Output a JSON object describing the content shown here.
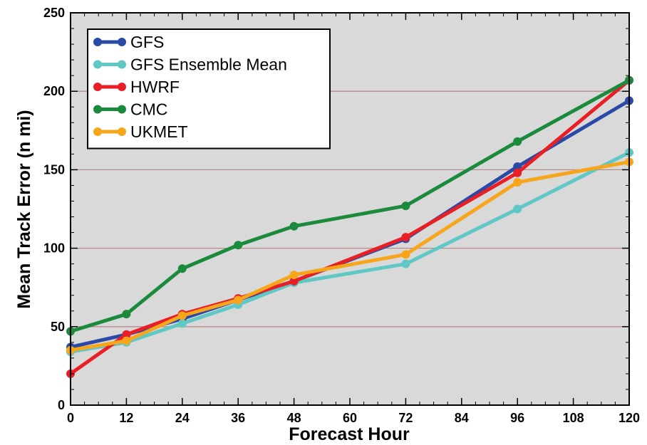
{
  "chart_data": {
    "type": "line",
    "title": "",
    "xlabel": "Forecast Hour",
    "ylabel": "Mean Track Error (n mi)",
    "x_ticks": [
      0,
      12,
      24,
      36,
      48,
      60,
      72,
      84,
      96,
      108,
      120
    ],
    "y_ticks": [
      0,
      50,
      100,
      150,
      200,
      250
    ],
    "xlim": [
      0,
      120
    ],
    "ylim": [
      0,
      250
    ],
    "grid": "horizontal",
    "legend_position": "top-left",
    "series": [
      {
        "name": "GFS",
        "color": "#2a4aa6",
        "x": [
          0,
          12,
          24,
          36,
          48,
          72,
          96,
          120
        ],
        "values": [
          37,
          45,
          55,
          67,
          79,
          106,
          152,
          194
        ]
      },
      {
        "name": "GFS Ensemble Mean",
        "color": "#5fc8c4",
        "x": [
          0,
          12,
          24,
          36,
          48,
          72,
          96,
          120
        ],
        "values": [
          34,
          40,
          52,
          64,
          78,
          90,
          125,
          161
        ]
      },
      {
        "name": "HWRF",
        "color": "#e81f25",
        "x": [
          0,
          12,
          24,
          36,
          48,
          72,
          96,
          120
        ],
        "values": [
          20,
          45,
          58,
          68,
          79,
          107,
          148,
          207
        ]
      },
      {
        "name": "CMC",
        "color": "#1b8a3c",
        "x": [
          0,
          12,
          24,
          36,
          48,
          72,
          96,
          120
        ],
        "values": [
          47,
          58,
          87,
          102,
          114,
          127,
          168,
          207
        ]
      },
      {
        "name": "UKMET",
        "color": "#f7a51b",
        "x": [
          0,
          12,
          24,
          36,
          48,
          72,
          96,
          120
        ],
        "values": [
          35,
          41,
          57,
          67,
          83,
          96,
          142,
          155
        ]
      }
    ]
  },
  "colors": {
    "plot_background": "#d9d9d9",
    "gridline": "#b88c8c"
  }
}
